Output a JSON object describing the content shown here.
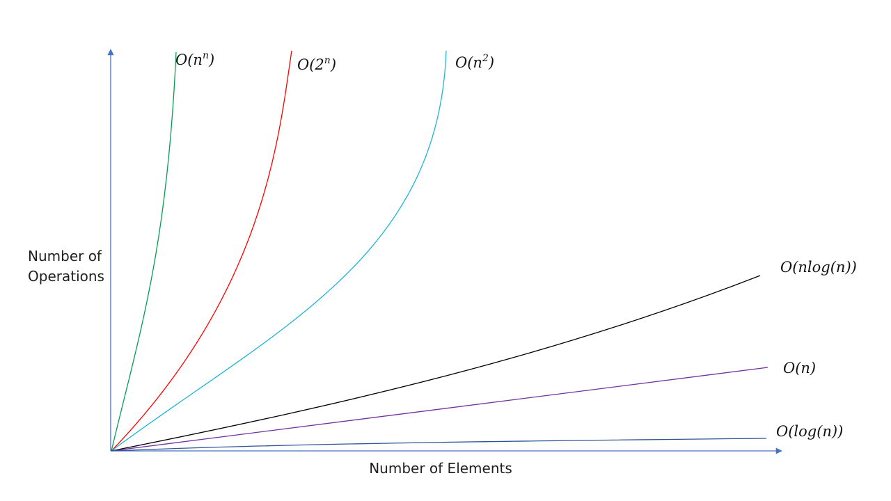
{
  "chart_data": {
    "type": "line",
    "title": "",
    "xlabel": "Number of Elements",
    "ylabel_lines": [
      "Number of",
      "Operations"
    ],
    "x_ticks": "none",
    "y_ticks": "none",
    "grid": false,
    "legend": "inline labels at curve ends",
    "axis_color": "#4472c4",
    "series": [
      {
        "key": "nn",
        "label_main": "O(n",
        "label_sup": "n",
        "label_tail": ")",
        "color": "#00a050",
        "growth": "n^n"
      },
      {
        "key": "exp",
        "label_main": "O(2",
        "label_sup": "n",
        "label_tail": ")",
        "color": "#ff0000",
        "growth": "2^n"
      },
      {
        "key": "sq",
        "label_main": "O(n",
        "label_sup": "2",
        "label_tail": ")",
        "color": "#1fb4d8",
        "growth": "n^2"
      },
      {
        "key": "nlogn",
        "label_main": "O(nlog(n))",
        "label_sup": "",
        "label_tail": "",
        "color": "#000000",
        "growth": "n log n"
      },
      {
        "key": "lin",
        "label_main": "O(n)",
        "label_sup": "",
        "label_tail": "",
        "color": "#7030a0",
        "growth": "n"
      },
      {
        "key": "log",
        "label_main": "O(log(n))",
        "label_sup": "",
        "label_tail": "",
        "color": "#2f5597",
        "growth": "log n"
      }
    ]
  }
}
